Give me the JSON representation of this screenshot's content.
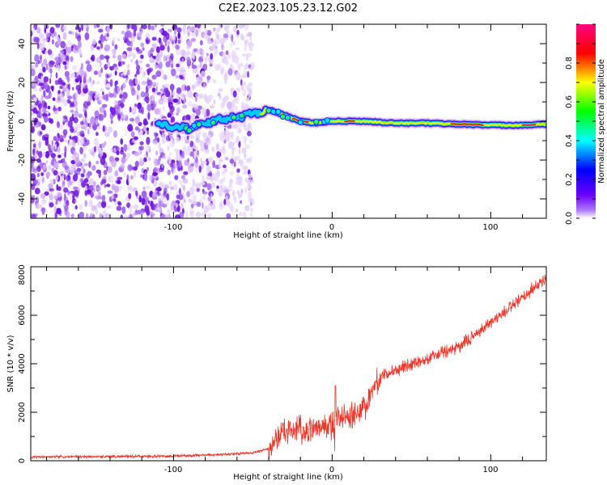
{
  "title": "C2E2.2023.105.23.12.G02",
  "colors": {
    "snr_line": "#e8372c",
    "scatter": "#7a1fe0",
    "colormap": [
      "#ff00ff",
      "#ff0000",
      "#ffff00",
      "#00ff00",
      "#00ffff",
      "#0000ff",
      "#7a00ff",
      "#ffffff"
    ]
  },
  "chart_data": [
    {
      "type": "heatmap",
      "xlabel": "Height of straight line (km)",
      "ylabel": "Frequency (Hz)",
      "xlim": [
        -190,
        135
      ],
      "ylim": [
        -50,
        50
      ],
      "x_ticks": [
        -100,
        0,
        100
      ],
      "y_ticks": [
        -40,
        -20,
        0,
        20,
        40
      ],
      "grid": false,
      "description_series": {
        "noise_region_x": [
          -190,
          -50
        ],
        "centerline": {
          "x": [
            -110,
            -95,
            -90,
            -80,
            -70,
            -60,
            -50,
            -40,
            -30,
            -20,
            -10,
            0,
            10,
            20,
            40,
            60,
            80,
            100,
            120,
            135
          ],
          "y": [
            -2,
            -3,
            -4,
            -1,
            1,
            2,
            4,
            6,
            3,
            0,
            -1,
            0,
            0,
            0,
            -1,
            -1,
            -1.5,
            -2,
            -2,
            -1.5
          ]
        }
      },
      "colorbar": {
        "label": "Normalized spectral amplitude",
        "range": [
          0,
          1
        ],
        "ticks": [
          0.0,
          0.2,
          0.4,
          0.6,
          0.8
        ]
      }
    },
    {
      "type": "line",
      "xlabel": "Height of straight line (km)",
      "ylabel": "SNR (10 * v/v)",
      "xlim": [
        -190,
        135
      ],
      "ylim": [
        0,
        8000
      ],
      "x_ticks": [
        -100,
        0,
        100
      ],
      "y_ticks": [
        0,
        2000,
        4000,
        6000,
        8000
      ],
      "grid": false,
      "series": [
        {
          "x": [
            -190,
            -150,
            -100,
            -70,
            -50,
            -40,
            -35,
            -30,
            -25,
            -20,
            -15,
            -10,
            -5,
            0,
            5,
            10,
            15,
            20,
            25,
            30,
            40,
            50,
            60,
            70,
            80,
            90,
            100,
            110,
            120,
            130,
            135
          ],
          "values": [
            150,
            170,
            190,
            260,
            330,
            500,
            900,
            1300,
            1250,
            1400,
            1300,
            1400,
            1500,
            1600,
            1750,
            1800,
            1900,
            2200,
            2900,
            3400,
            3750,
            4000,
            4200,
            4450,
            4700,
            5200,
            5700,
            6200,
            6700,
            7300,
            7500
          ]
        }
      ]
    }
  ],
  "text": {
    "hm_xlabel": "Height of straight line (km)",
    "hm_ylabel": "Frequency (Hz)",
    "snr_xlabel": "Height of straight line (km)",
    "snr_ylabel": "SNR (10 * v/v)",
    "cb_label": "Normalized spectral amplitude",
    "hm_xt0": "-100",
    "hm_xt1": "0",
    "hm_xt2": "100",
    "hm_yt0": "-40",
    "hm_yt1": "-20",
    "hm_yt2": "0",
    "hm_yt3": "20",
    "hm_yt4": "40",
    "snr_xt0": "-100",
    "snr_xt1": "0",
    "snr_xt2": "100",
    "snr_yt0": "0",
    "snr_yt1": "2000",
    "snr_yt2": "4000",
    "snr_yt3": "6000",
    "snr_yt4": "8000",
    "cb_t0": "0.0",
    "cb_t1": "0.2",
    "cb_t2": "0.4",
    "cb_t3": "0.6",
    "cb_t4": "0.8"
  }
}
